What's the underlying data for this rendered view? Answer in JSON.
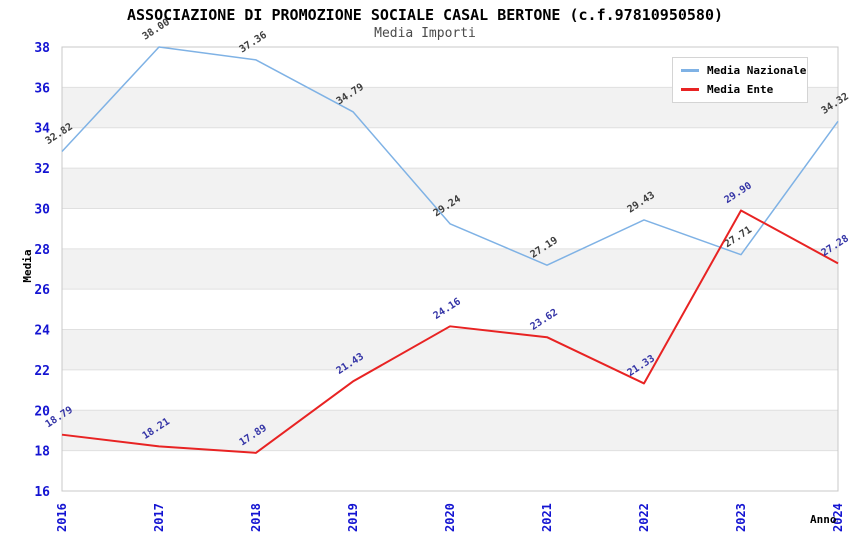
{
  "chart_data": {
    "type": "line",
    "title": "ASSOCIAZIONE DI PROMOZIONE SOCIALE CASAL BERTONE (c.f.97810950580)",
    "subtitle": "Media Importi",
    "xlabel": "Anno",
    "ylabel": "Media",
    "categories": [
      "2016",
      "2017",
      "2018",
      "2019",
      "2020",
      "2021",
      "2022",
      "2023",
      "2024"
    ],
    "series": [
      {
        "name": "Media Nazionale",
        "color": "#7fb2e5",
        "label_color": "#3d3d3d",
        "values": [
          32.82,
          38.0,
          37.36,
          34.79,
          29.24,
          27.19,
          29.43,
          27.71,
          34.32
        ]
      },
      {
        "name": "Media Ente",
        "color": "#e82323",
        "label_color": "#3434a6",
        "values": [
          18.79,
          18.21,
          17.89,
          21.43,
          24.16,
          23.62,
          21.33,
          29.9,
          27.28
        ]
      }
    ],
    "ylim": [
      16,
      38
    ],
    "ytick_step": 2,
    "yticks": [
      "16",
      "18",
      "20",
      "22",
      "24",
      "26",
      "28",
      "30",
      "32",
      "34",
      "36",
      "38"
    ],
    "grid": "horizontal-lines-with-alternating-bands",
    "legend_position": "top-right",
    "colors": {
      "axis_tick_label": "#1414d2",
      "band_fill": "#f2f2f2",
      "gridline": "#e0e0e0",
      "plot_border": "#c8c8c8"
    }
  }
}
